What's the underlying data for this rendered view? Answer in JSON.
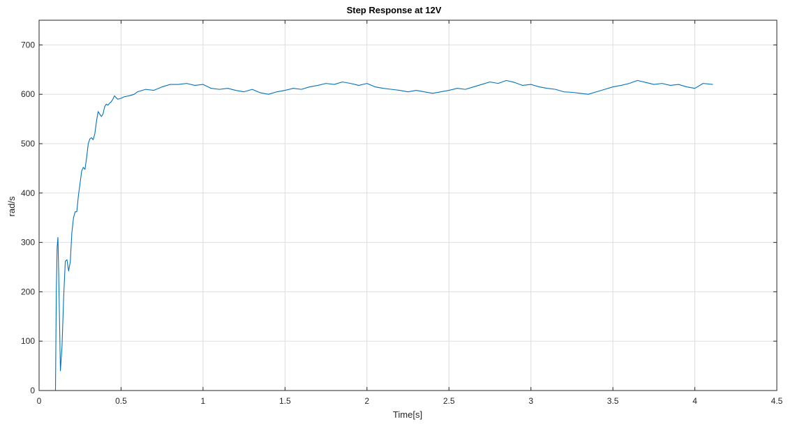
{
  "chart_data": {
    "type": "line",
    "title": "Step Response at 12V",
    "xlabel": "Time[s]",
    "ylabel": "rad/s",
    "xlim": [
      0,
      4.5
    ],
    "ylim": [
      0,
      750
    ],
    "xticks": [
      0,
      0.5,
      1,
      1.5,
      2,
      2.5,
      3,
      3.5,
      4,
      4.5
    ],
    "xtick_labels": [
      "0",
      "0.5",
      "1",
      "1.5",
      "2",
      "2.5",
      "3",
      "3.5",
      "4",
      "4.5"
    ],
    "yticks": [
      0,
      100,
      200,
      300,
      400,
      500,
      600,
      700
    ],
    "ytick_labels": [
      "0",
      "100",
      "200",
      "300",
      "400",
      "500",
      "600",
      "700"
    ],
    "grid": true,
    "colors": {
      "line": "#0072BD",
      "grid": "#dddddd",
      "axis": "#262626"
    },
    "series": [
      {
        "x": [
          0.1,
          0.105,
          0.11,
          0.115,
          0.12,
          0.13,
          0.14,
          0.15,
          0.16,
          0.17,
          0.18,
          0.19,
          0.2,
          0.21,
          0.22,
          0.23,
          0.24,
          0.25,
          0.26,
          0.27,
          0.28,
          0.29,
          0.3,
          0.31,
          0.32,
          0.33,
          0.34,
          0.35,
          0.36,
          0.37,
          0.38,
          0.39,
          0.4,
          0.41,
          0.42,
          0.43,
          0.44,
          0.45,
          0.46,
          0.47,
          0.48,
          0.5,
          0.52,
          0.55,
          0.58,
          0.6,
          0.62,
          0.65,
          0.7,
          0.75,
          0.8,
          0.85,
          0.9,
          0.95,
          1.0,
          1.05,
          1.1,
          1.15,
          1.2,
          1.25,
          1.3,
          1.35,
          1.4,
          1.45,
          1.5,
          1.55,
          1.6,
          1.65,
          1.7,
          1.75,
          1.8,
          1.85,
          1.9,
          1.95,
          2.0,
          2.05,
          2.1,
          2.15,
          2.2,
          2.25,
          2.3,
          2.35,
          2.4,
          2.45,
          2.5,
          2.55,
          2.6,
          2.65,
          2.7,
          2.75,
          2.8,
          2.85,
          2.9,
          2.95,
          3.0,
          3.05,
          3.1,
          3.15,
          3.2,
          3.25,
          3.3,
          3.35,
          3.4,
          3.45,
          3.5,
          3.55,
          3.6,
          3.65,
          3.7,
          3.75,
          3.8,
          3.85,
          3.9,
          3.95,
          4.0,
          4.05,
          4.11
        ],
        "values": [
          0,
          200,
          290,
          310,
          230,
          40,
          90,
          190,
          262,
          265,
          242,
          260,
          320,
          350,
          362,
          362,
          395,
          420,
          445,
          452,
          448,
          472,
          500,
          510,
          512,
          508,
          520,
          545,
          565,
          560,
          555,
          560,
          575,
          580,
          578,
          582,
          585,
          590,
          597,
          593,
          590,
          592,
          595,
          597,
          600,
          605,
          607,
          610,
          608,
          615,
          620,
          620,
          622,
          618,
          620,
          612,
          610,
          612,
          608,
          605,
          610,
          603,
          600,
          605,
          608,
          612,
          610,
          615,
          618,
          622,
          620,
          625,
          622,
          618,
          622,
          615,
          612,
          610,
          608,
          605,
          608,
          605,
          602,
          605,
          608,
          612,
          610,
          615,
          620,
          625,
          622,
          628,
          624,
          618,
          620,
          615,
          612,
          610,
          605,
          604,
          602,
          600,
          605,
          610,
          615,
          618,
          622,
          628,
          624,
          620,
          622,
          618,
          620,
          615,
          612,
          622,
          620
        ]
      }
    ]
  }
}
